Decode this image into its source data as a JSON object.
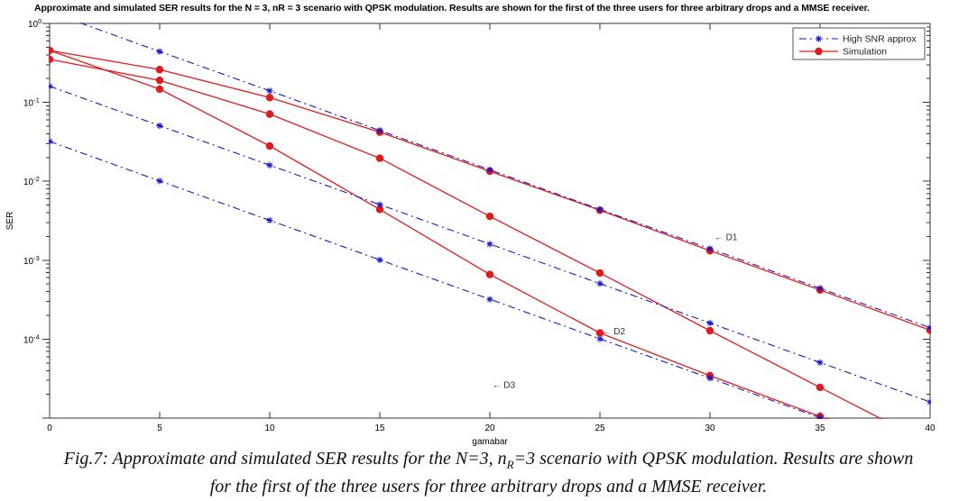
{
  "figure": {
    "caption": {
      "line1_pre": "Fig.7: Approximate and simulated SER results for the N=3, n",
      "line1_sub": "R",
      "line1_post": "=3 scenario with QPSK modulation. Results are shown",
      "line2": "for the first of the three users for three arbitrary drops and a MMSE receiver."
    }
  },
  "chart_data": {
    "type": "line",
    "title": "Approximate and simulated SER results for the N = 3, nR = 3 scenario with QPSK modulation. Results are shown for the first of the three users for three arbitrary drops and a MMSE receiver.",
    "xlabel": "gamabar",
    "ylabel": "SER",
    "xlim": [
      0,
      40
    ],
    "ylim": [
      1e-05,
      1
    ],
    "x_ticks": [
      0,
      5,
      10,
      15,
      20,
      25,
      30,
      35,
      40
    ],
    "y_tick_exponents": [
      0,
      -1,
      -2,
      -3,
      -4
    ],
    "grid": false,
    "x": [
      0,
      5,
      10,
      15,
      20,
      25,
      30,
      35,
      40
    ],
    "series": [
      {
        "name": "High SNR approx (drop D1)",
        "group": "approx",
        "values": [
          1.4,
          0.44,
          0.14,
          0.044,
          0.014,
          0.0044,
          0.0014,
          0.00044,
          0.00014
        ]
      },
      {
        "name": "Simulation (drop D1)",
        "group": "sim",
        "values": [
          0.455,
          0.26,
          0.115,
          0.042,
          0.0134,
          0.0043,
          0.00132,
          0.00042,
          0.00013
        ]
      },
      {
        "name": "High SNR approx (drop D2)",
        "group": "approx",
        "values": [
          0.16,
          0.0506,
          0.016,
          0.00506,
          0.0016,
          0.000506,
          0.00016,
          5.06e-05,
          1.6e-05
        ]
      },
      {
        "name": "Simulation (drop D2)",
        "group": "sim",
        "values": [
          0.35,
          0.19,
          0.071,
          0.0196,
          0.0036,
          0.00069,
          0.000128,
          2.45e-05,
          4.7e-06
        ]
      },
      {
        "name": "High SNR approx (drop D3)",
        "group": "approx",
        "values": [
          0.032,
          0.0101,
          0.0032,
          0.00101,
          0.00032,
          0.000101,
          3.2e-05,
          1.01e-05,
          3.2e-06
        ]
      },
      {
        "name": "Simulation (drop D3)",
        "group": "sim",
        "values": [
          0.455,
          0.147,
          0.028,
          0.0044,
          0.00066,
          0.00012,
          3.45e-05,
          1.05e-05,
          3.2e-06
        ]
      }
    ],
    "legend": {
      "position": "top-right",
      "entries": [
        {
          "label": "High SNR approx",
          "style": "dashdot",
          "marker": "asterisk",
          "color": "#1717c9"
        },
        {
          "label": "Simulation",
          "style": "solid",
          "marker": "circle",
          "color": "#e01b1b"
        }
      ]
    },
    "annotations": [
      {
        "text": "← D1",
        "x": 30.2,
        "y": 0.0018
      },
      {
        "text": "← D2",
        "x": 25.1,
        "y": 0.000115
      },
      {
        "text": "← D3",
        "x": 20.1,
        "y": 2.4e-05
      }
    ],
    "colors": {
      "approx": "#1717c9",
      "sim": "#e01b1b",
      "axis": "#333333",
      "text": "#000000"
    }
  }
}
